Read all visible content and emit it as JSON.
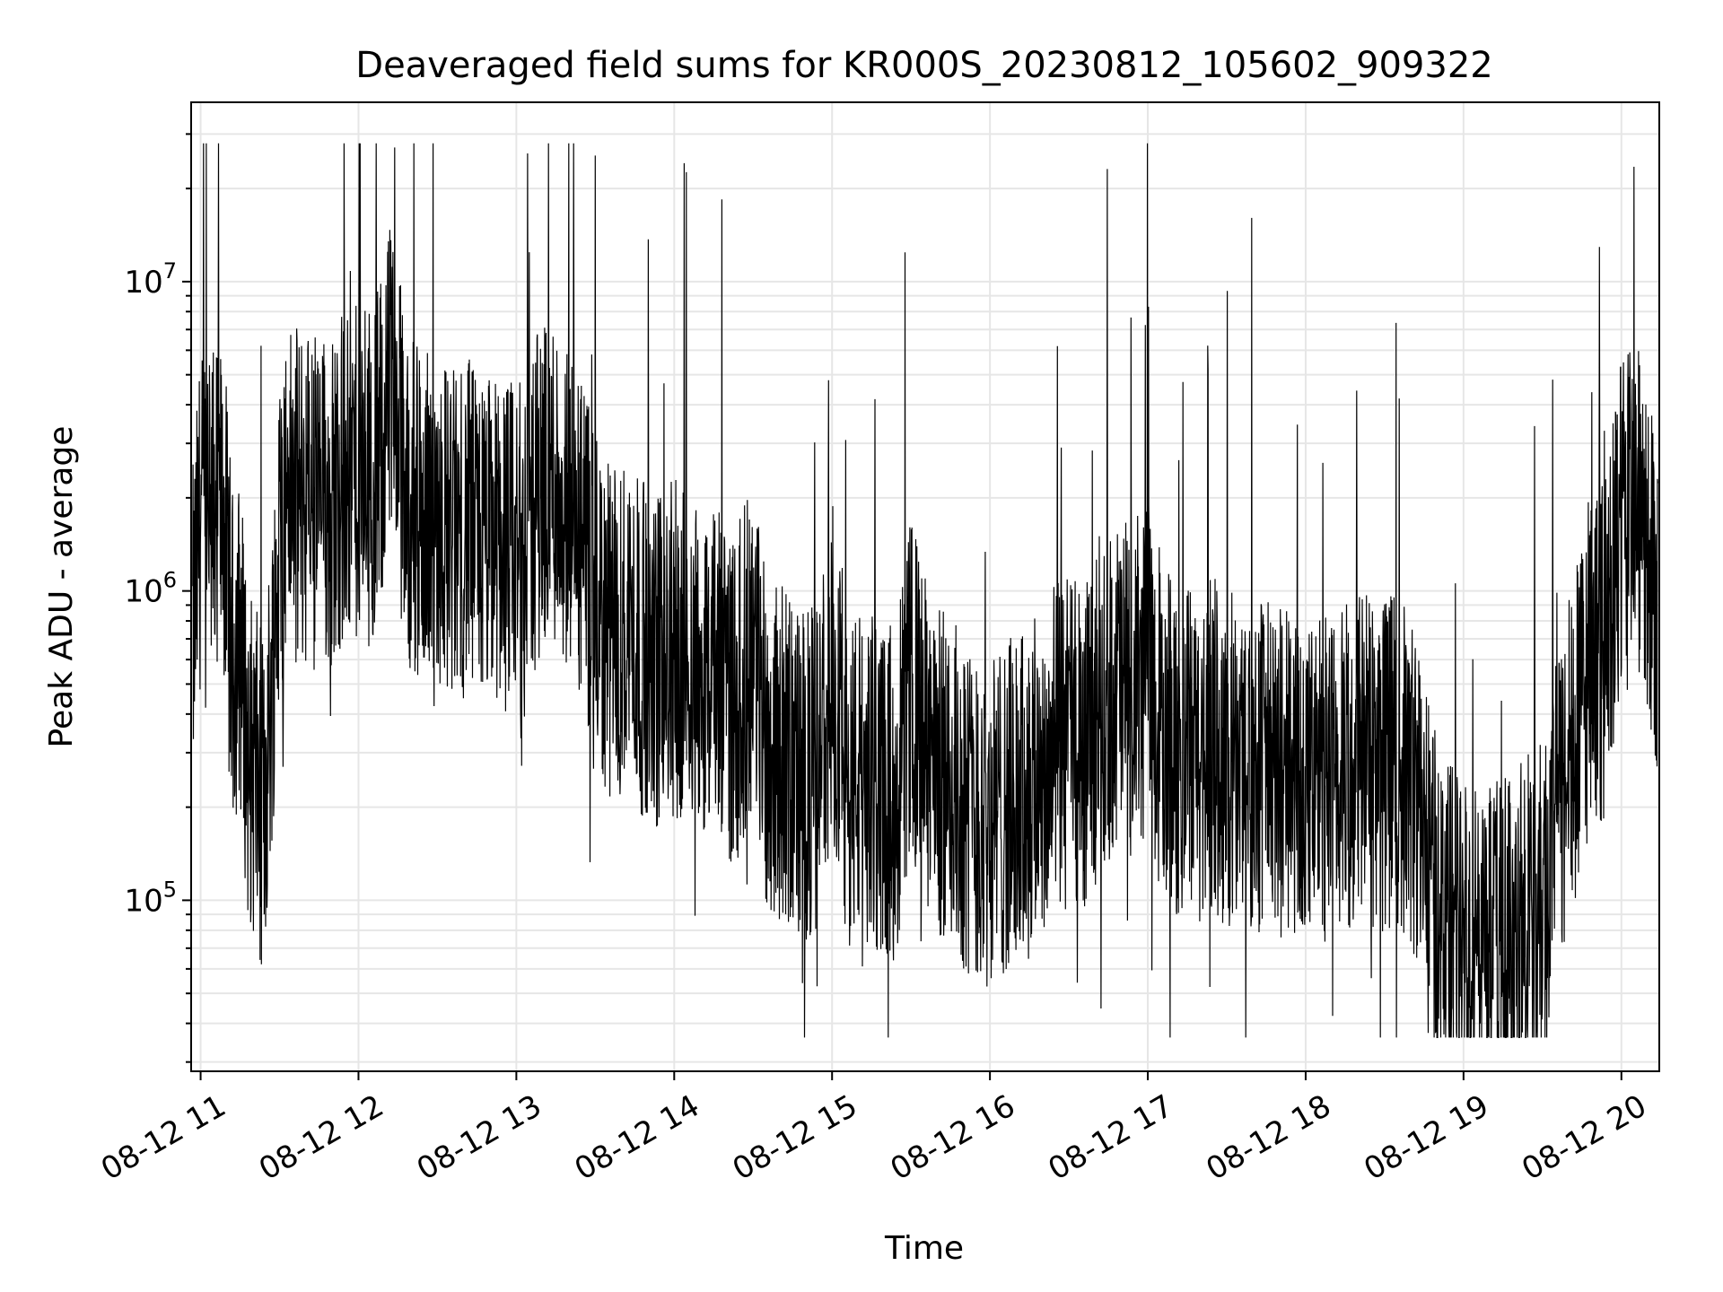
{
  "chart_data": {
    "type": "line",
    "title": "Deaveraged field sums for KR000S_20230812_105602_909322",
    "xlabel": "Time",
    "ylabel": "Peak ADU - average",
    "x_tick_labels": [
      "08-12 11",
      "08-12 12",
      "08-12 13",
      "08-12 14",
      "08-12 15",
      "08-12 16",
      "08-12 17",
      "08-12 18",
      "08-12 19",
      "08-12 20"
    ],
    "x_tick_hours": [
      11,
      12,
      13,
      14,
      15,
      16,
      17,
      18,
      19,
      20
    ],
    "xlim": [
      10.94,
      20.24
    ],
    "yscale": "log",
    "ylim": [
      28000,
      38000000
    ],
    "y_major_ticks": [
      {
        "value": 100000,
        "base": "10",
        "exp": "5"
      },
      {
        "value": 1000000,
        "base": "10",
        "exp": "6"
      },
      {
        "value": 10000000,
        "base": "10",
        "exp": "7"
      }
    ],
    "grid": true,
    "line_color": "#000000",
    "series": [
      {
        "x": [
          10.95,
          11.0,
          11.05,
          11.1,
          11.15,
          11.2,
          11.25,
          11.3,
          11.35,
          11.4,
          11.45,
          11.5,
          11.55,
          11.6,
          11.7,
          11.8,
          11.9,
          12.0,
          12.1,
          12.2,
          12.25,
          12.3,
          12.4,
          12.5,
          12.6,
          12.7,
          12.8,
          12.9,
          13.0,
          13.1,
          13.2,
          13.3,
          13.4,
          13.5,
          13.6,
          13.7,
          13.8,
          13.9,
          14.0,
          14.1,
          14.2,
          14.3,
          14.4,
          14.5,
          14.6,
          14.7,
          14.8,
          14.9,
          15.0,
          15.1,
          15.2,
          15.3,
          15.4,
          15.5,
          15.6,
          15.7,
          15.8,
          15.9,
          16.0,
          16.1,
          16.2,
          16.3,
          16.4,
          16.5,
          16.6,
          16.7,
          16.8,
          16.9,
          17.0,
          17.1,
          17.2,
          17.3,
          17.4,
          17.5,
          17.6,
          17.7,
          17.8,
          17.9,
          18.0,
          18.1,
          18.2,
          18.3,
          18.4,
          18.5,
          18.6,
          18.7,
          18.8,
          18.9,
          19.0,
          19.1,
          19.2,
          19.3,
          19.4,
          19.5,
          19.6,
          19.7,
          19.8,
          19.9,
          20.0,
          20.1,
          20.2,
          20.23
        ],
        "y": [
          700000,
          1800000,
          1600000,
          1900000,
          1700000,
          600000,
          700000,
          300000,
          250000,
          200000,
          500000,
          1500000,
          2200000,
          2000000,
          2100000,
          1900000,
          2300000,
          2400000,
          2300000,
          4500000,
          3500000,
          2000000,
          1700000,
          1800000,
          1500000,
          1600000,
          1400000,
          1500000,
          1300000,
          1800000,
          2500000,
          2000000,
          1500000,
          900000,
          700000,
          800000,
          650000,
          600000,
          650000,
          600000,
          550000,
          500000,
          450000,
          700000,
          300000,
          300000,
          250000,
          250000,
          600000,
          250000,
          250000,
          230000,
          220000,
          500000,
          300000,
          250000,
          220000,
          190000,
          180000,
          200000,
          210000,
          250000,
          300000,
          320000,
          300000,
          450000,
          500000,
          480000,
          550000,
          350000,
          300000,
          280000,
          320000,
          280000,
          300000,
          280000,
          260000,
          250000,
          240000,
          260000,
          230000,
          300000,
          290000,
          280000,
          270000,
          220000,
          110000,
          85000,
          70000,
          72000,
          75000,
          80000,
          90000,
          95000,
          200000,
          300000,
          600000,
          650000,
          1600000,
          1800000,
          1100000,
          900000
        ]
      }
    ]
  }
}
